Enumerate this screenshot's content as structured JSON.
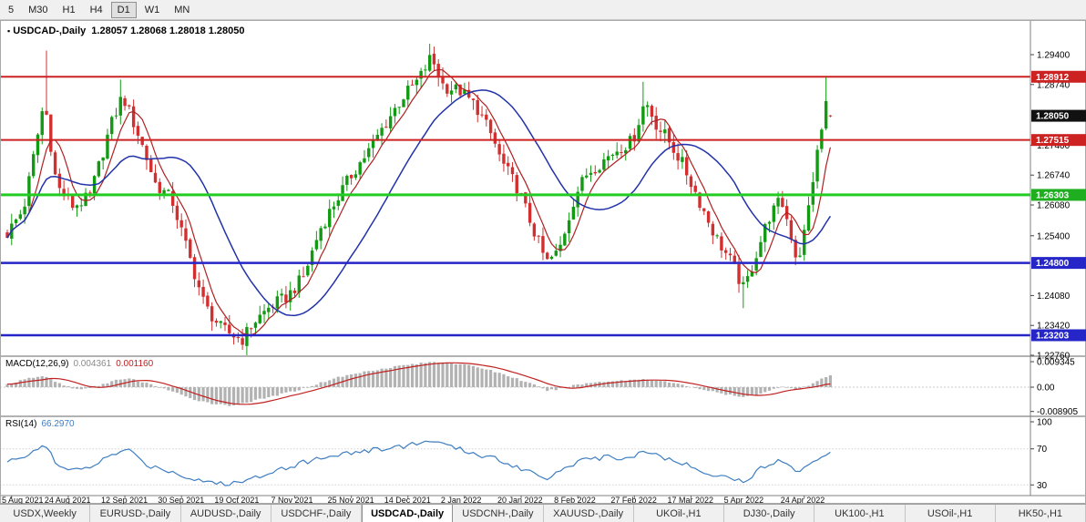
{
  "toolbar": {
    "timeframes": [
      {
        "label": "5",
        "active": false
      },
      {
        "label": "M30",
        "active": false
      },
      {
        "label": "H1",
        "active": false
      },
      {
        "label": "H4",
        "active": false
      },
      {
        "label": "D1",
        "active": true
      },
      {
        "label": "W1",
        "active": false
      },
      {
        "label": "MN",
        "active": false
      }
    ]
  },
  "chart": {
    "title_symbol": "USDCAD-,Daily",
    "title_ohlc": "1.28057 1.28068 1.28018 1.28050"
  },
  "indicators": {
    "macd_label": "MACD(12,26,9)",
    "macd_main_value": "0.004361",
    "macd_signal_value": "0.001160",
    "rsi_label": "RSI(14)",
    "rsi_value": "66.2970"
  },
  "tabs": {
    "items": [
      "USDX,Weekly",
      "EURUSD-,Daily",
      "AUDUSD-,Daily",
      "USDCHF-,Daily",
      "USDCAD-,Daily",
      "USDCNH-,Daily",
      "XAUUSD-,Daily",
      "UKOil-,H1",
      "DJ30-,Daily",
      "UK100-,H1",
      "USOil-,H1",
      "HK50-,H1"
    ],
    "active": "USDCAD-,Daily"
  },
  "chart_data": {
    "type": "candlestick",
    "symbol": "USDCAD-",
    "timeframe": "Daily",
    "bars": 190,
    "colors": {
      "bull": "#129b12",
      "bear": "#d23030",
      "ma_fast": "#b02020",
      "ma_slow": "#2233aa",
      "macd_hist": "#b2b2b2",
      "macd_signal": "#c02020",
      "rsi_line": "#3e7ec0",
      "badge_current": "#111111"
    },
    "y_axis_ticks": [
      "1.29400",
      "1.28740",
      "1.27400",
      "1.26740",
      "1.26080",
      "1.25400",
      "1.24080",
      "1.23420",
      "1.22760"
    ],
    "price_badges": [
      {
        "label": "1.28912",
        "price": 1.28912,
        "color": "#cc2222"
      },
      {
        "label": "1.28050",
        "price": 1.2805,
        "color": "#111111"
      },
      {
        "label": "1.27515",
        "price": 1.27515,
        "color": "#cc2222"
      },
      {
        "label": "1.26303",
        "price": 1.26303,
        "color": "#1fae1f"
      },
      {
        "label": "1.24800",
        "price": 1.248,
        "color": "#2525c8"
      },
      {
        "label": "1.23203",
        "price": 1.23203,
        "color": "#2525c8"
      }
    ],
    "hlines": [
      {
        "price": 1.28912,
        "color": "#cc2222",
        "width": 2
      },
      {
        "price": 1.27515,
        "color": "#cc2222",
        "width": 2
      },
      {
        "price": 1.26303,
        "color": "#22cc22",
        "width": 3
      },
      {
        "price": 1.248,
        "color": "#2525c8",
        "width": 2.5
      },
      {
        "price": 1.23203,
        "color": "#2525c8",
        "width": 2.5
      }
    ],
    "x_axis_dates": [
      "5 Aug 2021",
      "24 Aug 2021",
      "12 Sep 2021",
      "30 Sep 2021",
      "19 Oct 2021",
      "7 Nov 2021",
      "25 Nov 2021",
      "14 Dec 2021",
      "2 Jan 2022",
      "20 Jan 2022",
      "8 Feb 2022",
      "27 Feb 2022",
      "17 Mar 2022",
      "5 Apr 2022",
      "24 Apr 2022"
    ],
    "price_path_anchors": [
      [
        0.0,
        1.2545
      ],
      [
        0.02,
        1.26
      ],
      [
        0.045,
        1.284
      ],
      [
        0.06,
        1.265
      ],
      [
        0.08,
        1.2605
      ],
      [
        0.1,
        1.2625
      ],
      [
        0.125,
        1.278
      ],
      [
        0.14,
        1.285
      ],
      [
        0.16,
        1.276
      ],
      [
        0.18,
        1.2655
      ],
      [
        0.2,
        1.262
      ],
      [
        0.22,
        1.25
      ],
      [
        0.24,
        1.2385
      ],
      [
        0.26,
        1.2335
      ],
      [
        0.285,
        1.231
      ],
      [
        0.3,
        1.235
      ],
      [
        0.32,
        1.2385
      ],
      [
        0.34,
        1.2405
      ],
      [
        0.36,
        1.245
      ],
      [
        0.38,
        1.2555
      ],
      [
        0.4,
        1.262
      ],
      [
        0.42,
        1.268
      ],
      [
        0.44,
        1.273
      ],
      [
        0.46,
        1.279
      ],
      [
        0.48,
        1.2845
      ],
      [
        0.5,
        1.2885
      ],
      [
        0.515,
        1.2935
      ],
      [
        0.53,
        1.287
      ],
      [
        0.55,
        1.286
      ],
      [
        0.57,
        1.2825
      ],
      [
        0.59,
        1.2755
      ],
      [
        0.6,
        1.2705
      ],
      [
        0.62,
        1.2645
      ],
      [
        0.64,
        1.255
      ],
      [
        0.655,
        1.248
      ],
      [
        0.67,
        1.2505
      ],
      [
        0.69,
        1.263
      ],
      [
        0.705,
        1.268
      ],
      [
        0.72,
        1.27
      ],
      [
        0.74,
        1.273
      ],
      [
        0.76,
        1.275
      ],
      [
        0.775,
        1.284
      ],
      [
        0.79,
        1.278
      ],
      [
        0.8,
        1.276
      ],
      [
        0.82,
        1.27
      ],
      [
        0.84,
        1.262
      ],
      [
        0.86,
        1.254
      ],
      [
        0.88,
        1.248
      ],
      [
        0.895,
        1.242
      ],
      [
        0.91,
        1.25
      ],
      [
        0.925,
        1.258
      ],
      [
        0.94,
        1.262
      ],
      [
        0.95,
        1.256
      ],
      [
        0.96,
        1.248
      ],
      [
        0.97,
        1.256
      ],
      [
        0.98,
        1.268
      ],
      [
        0.99,
        1.278
      ],
      [
        0.997,
        1.286
      ],
      [
        1.0,
        1.2805
      ]
    ],
    "wick_events": [
      {
        "f": 0.045,
        "high": 1.2949
      },
      {
        "f": 0.14,
        "high": 1.2885
      },
      {
        "f": 0.285,
        "low": 1.2288
      },
      {
        "f": 0.515,
        "high": 1.2964
      },
      {
        "f": 0.775,
        "high": 1.288
      },
      {
        "f": 0.895,
        "low": 1.238
      },
      {
        "f": 0.997,
        "high": 1.289
      }
    ],
    "last_bar": {
      "open": 1.28057,
      "high": 1.28068,
      "low": 1.28018,
      "close": 1.2805
    },
    "macd": {
      "axis_labels": [
        "0.009345",
        "0.00",
        "-0.008905"
      ],
      "main_value": 0.004361,
      "signal_value": 0.00116,
      "anchors": [
        [
          0.0,
          0.001
        ],
        [
          0.03,
          0.0035
        ],
        [
          0.045,
          0.004
        ],
        [
          0.07,
          0.0005
        ],
        [
          0.09,
          -0.001
        ],
        [
          0.11,
          0.0005
        ],
        [
          0.13,
          0.0025
        ],
        [
          0.15,
          0.003
        ],
        [
          0.18,
          0.0005
        ],
        [
          0.2,
          -0.0015
        ],
        [
          0.22,
          -0.004
        ],
        [
          0.25,
          -0.006
        ],
        [
          0.27,
          -0.0068
        ],
        [
          0.3,
          -0.005
        ],
        [
          0.33,
          -0.0028
        ],
        [
          0.36,
          -0.0005
        ],
        [
          0.4,
          0.0035
        ],
        [
          0.44,
          0.006
        ],
        [
          0.48,
          0.008
        ],
        [
          0.52,
          0.0093
        ],
        [
          0.55,
          0.0085
        ],
        [
          0.58,
          0.0068
        ],
        [
          0.6,
          0.005
        ],
        [
          0.62,
          0.003
        ],
        [
          0.64,
          0.0008
        ],
        [
          0.655,
          -0.0012
        ],
        [
          0.67,
          -0.0008
        ],
        [
          0.69,
          0.0008
        ],
        [
          0.72,
          0.002
        ],
        [
          0.75,
          0.0025
        ],
        [
          0.775,
          0.003
        ],
        [
          0.8,
          0.002
        ],
        [
          0.82,
          0.0008
        ],
        [
          0.85,
          -0.0012
        ],
        [
          0.87,
          -0.0025
        ],
        [
          0.895,
          -0.0038
        ],
        [
          0.915,
          -0.0022
        ],
        [
          0.93,
          -0.0008
        ],
        [
          0.945,
          0.0002
        ],
        [
          0.96,
          -0.0008
        ],
        [
          0.975,
          0.0008
        ],
        [
          0.99,
          0.003
        ],
        [
          1.0,
          0.004361
        ]
      ]
    },
    "rsi": {
      "axis_labels": [
        "100",
        "70",
        "30"
      ],
      "value": 66.297,
      "levels": [
        70,
        30
      ],
      "anchors": [
        [
          0.0,
          55
        ],
        [
          0.02,
          62
        ],
        [
          0.045,
          76
        ],
        [
          0.06,
          52
        ],
        [
          0.08,
          45
        ],
        [
          0.1,
          50
        ],
        [
          0.13,
          64
        ],
        [
          0.145,
          70
        ],
        [
          0.17,
          52
        ],
        [
          0.2,
          45
        ],
        [
          0.22,
          38
        ],
        [
          0.26,
          31
        ],
        [
          0.285,
          33
        ],
        [
          0.32,
          45
        ],
        [
          0.36,
          55
        ],
        [
          0.4,
          64
        ],
        [
          0.44,
          68
        ],
        [
          0.48,
          73
        ],
        [
          0.515,
          79
        ],
        [
          0.55,
          69
        ],
        [
          0.59,
          60
        ],
        [
          0.62,
          50
        ],
        [
          0.655,
          38
        ],
        [
          0.69,
          55
        ],
        [
          0.72,
          60
        ],
        [
          0.76,
          61
        ],
        [
          0.775,
          69
        ],
        [
          0.8,
          59
        ],
        [
          0.84,
          48
        ],
        [
          0.86,
          41
        ],
        [
          0.895,
          34
        ],
        [
          0.925,
          54
        ],
        [
          0.94,
          59
        ],
        [
          0.95,
          50
        ],
        [
          0.96,
          44
        ],
        [
          0.975,
          55
        ],
        [
          0.99,
          63
        ],
        [
          1.0,
          66.297
        ]
      ]
    }
  }
}
